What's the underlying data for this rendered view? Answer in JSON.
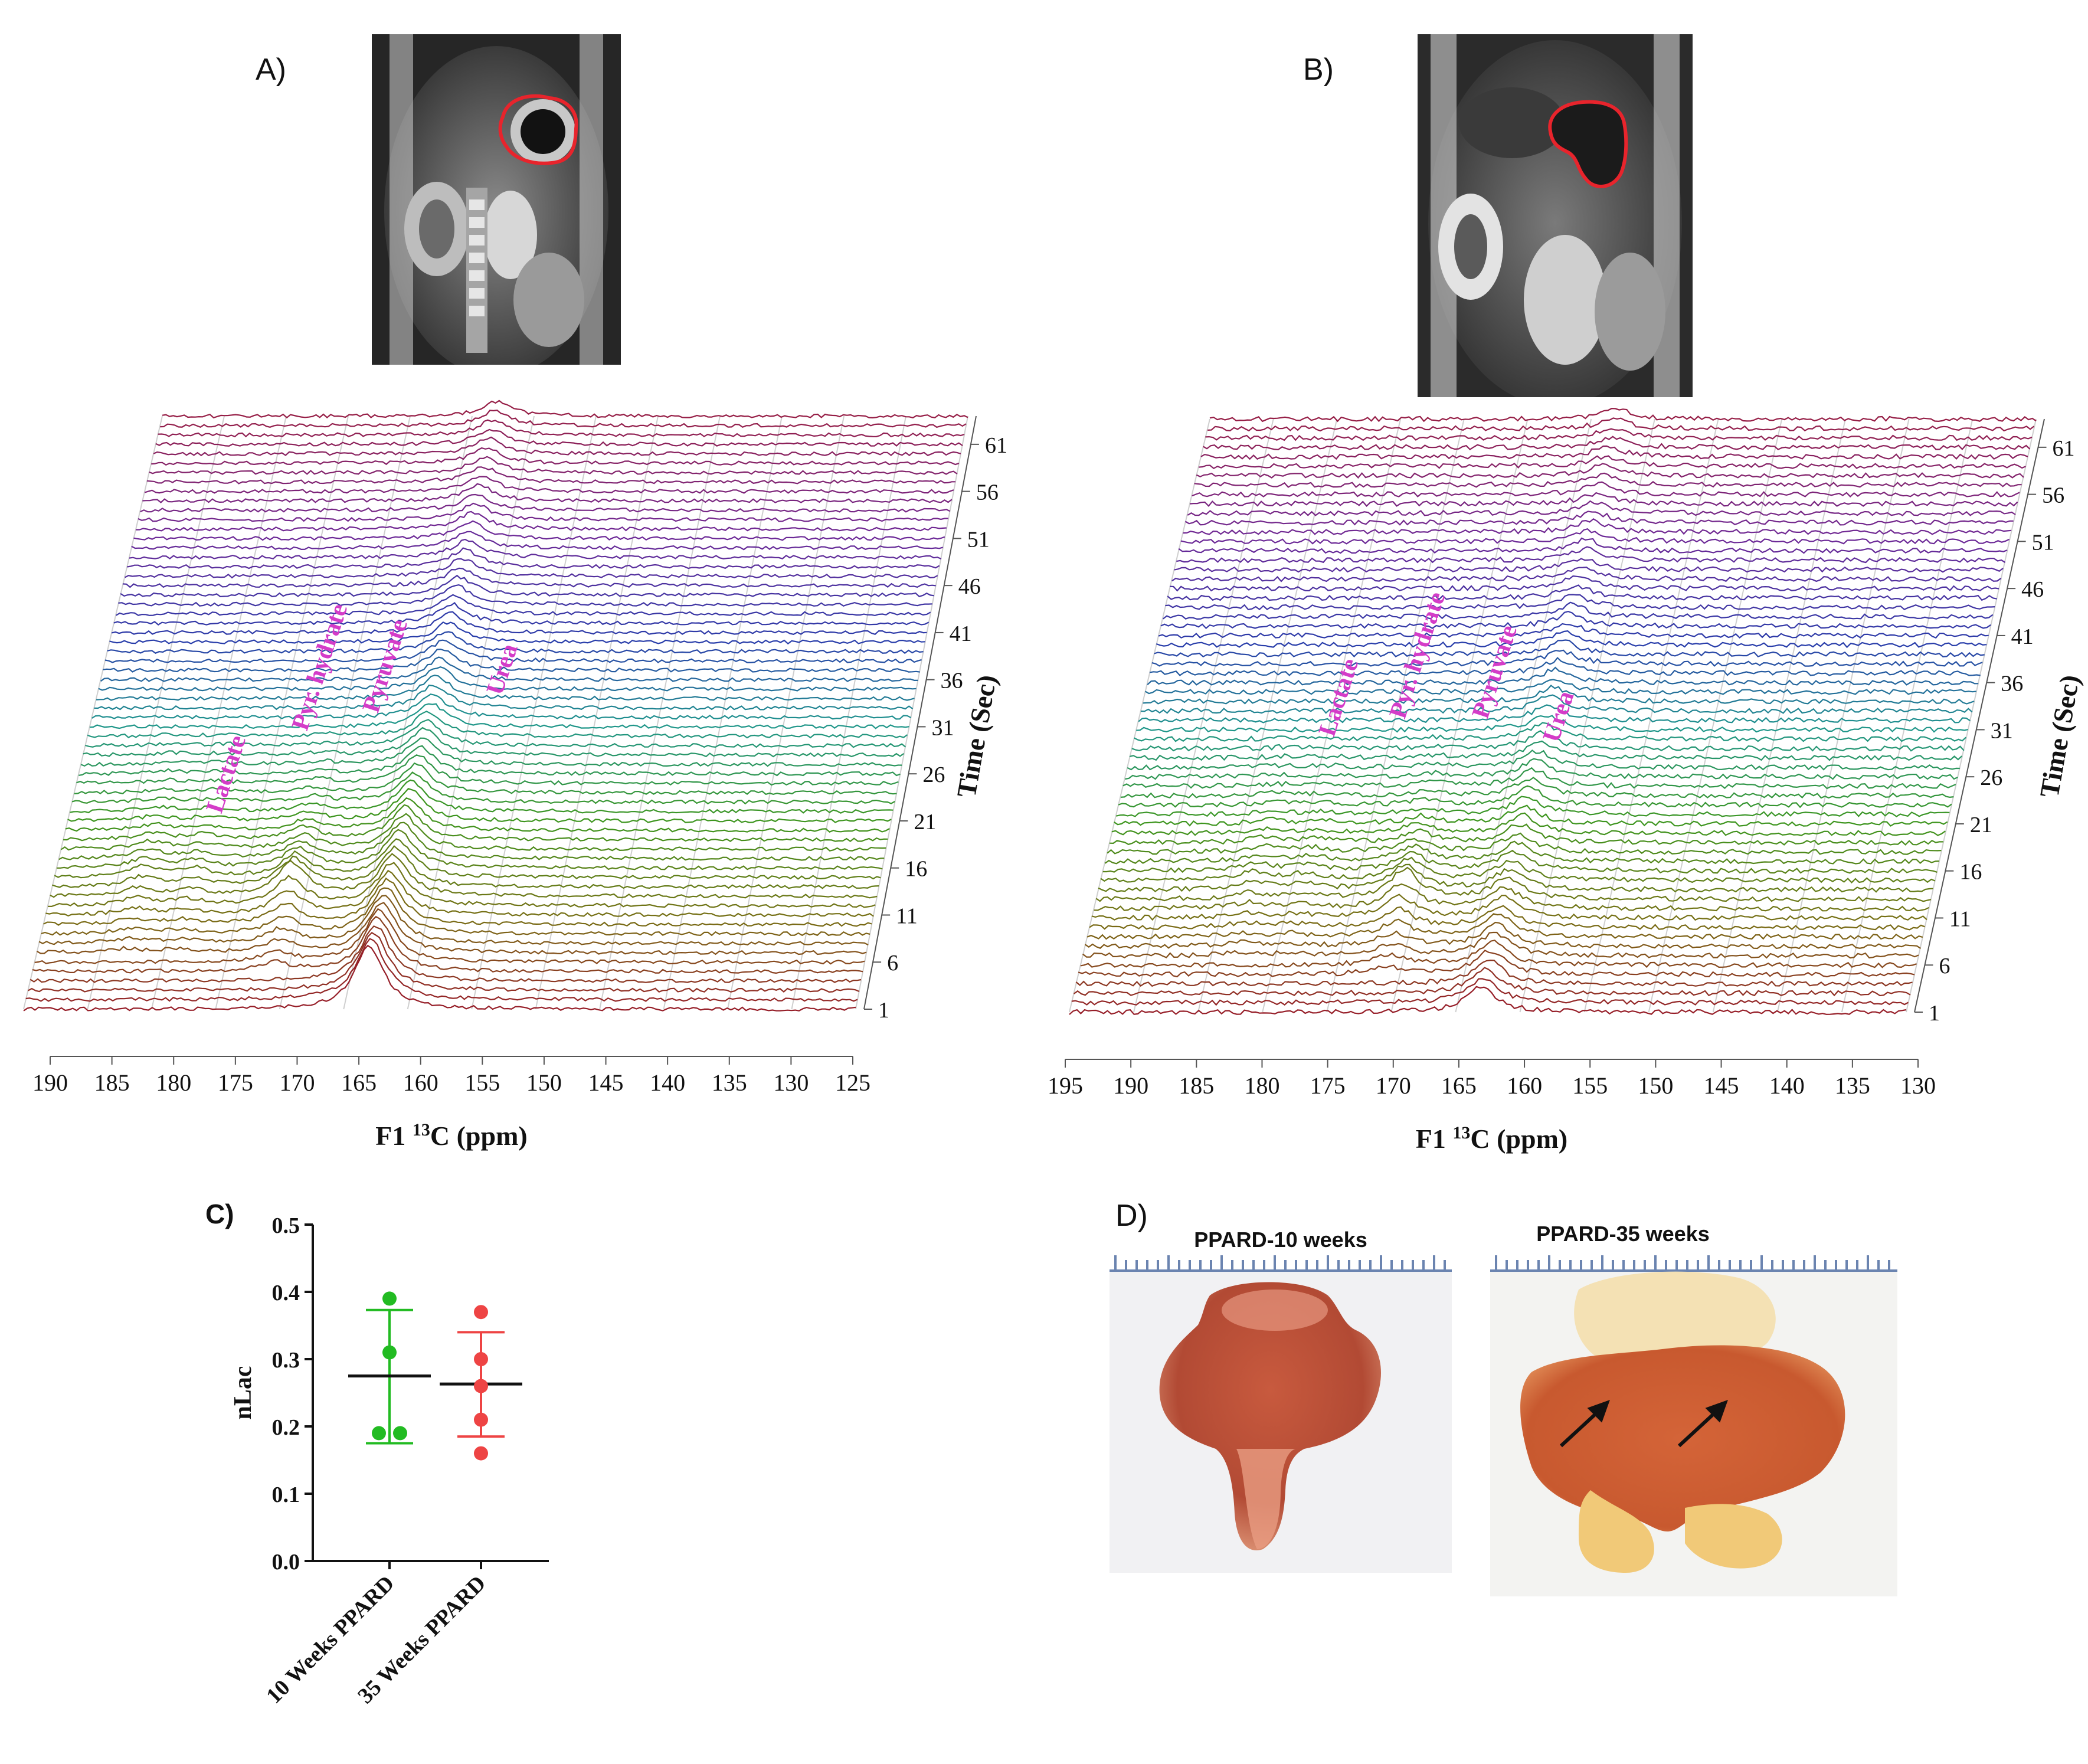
{
  "panels": {
    "a": {
      "label": "A)"
    },
    "b": {
      "label": "B)"
    },
    "c": {
      "label": "C)"
    },
    "d": {
      "label": "D)"
    }
  },
  "colors": {
    "roi_outline": "#e8242c",
    "peak_label": "#d43cc8",
    "group1": "#22bb22",
    "group2": "#ee4444"
  },
  "chart_data": [
    {
      "id": "spectrum_a",
      "type": "line",
      "style": "stacked-3d-spectra",
      "xlabel": "F1 ",
      "xlabel_sup": "13",
      "xlabel_rest": "C (ppm)",
      "ylabel": "Time (Sec)",
      "x_ticks": [
        190,
        185,
        180,
        175,
        170,
        165,
        160,
        155,
        150,
        145,
        140,
        135,
        130,
        125
      ],
      "xlim": [
        190,
        125
      ],
      "time_ticks": [
        1,
        6,
        11,
        16,
        21,
        26,
        31,
        36,
        41,
        46,
        51,
        56,
        61
      ],
      "n_traces": 64,
      "peaks": [
        {
          "name": "Lactate",
          "ppm": 183
        },
        {
          "name": "Pyr. hydrate",
          "ppm": 179
        },
        {
          "name": "Pyruvate",
          "ppm": 171
        },
        {
          "name": "Urea",
          "ppm": 163
        }
      ]
    },
    {
      "id": "spectrum_b",
      "type": "line",
      "style": "stacked-3d-spectra",
      "xlabel": "F1 ",
      "xlabel_sup": "13",
      "xlabel_rest": "C (ppm)",
      "ylabel": "Time (Sec)",
      "x_ticks": [
        195,
        190,
        185,
        180,
        175,
        170,
        165,
        160,
        155,
        150,
        145,
        140,
        135,
        130
      ],
      "xlim": [
        195,
        130
      ],
      "time_ticks": [
        1,
        6,
        11,
        16,
        21,
        26,
        31,
        36,
        41,
        46,
        51,
        56,
        61
      ],
      "n_traces": 64,
      "peaks": [
        {
          "name": "Lactate",
          "ppm": 183
        },
        {
          "name": "Pyr. hydrate",
          "ppm": 179
        },
        {
          "name": "Pyruvate",
          "ppm": 171
        },
        {
          "name": "Urea",
          "ppm": 163
        }
      ]
    },
    {
      "id": "scatter_c",
      "type": "scatter",
      "ylabel": "nLac",
      "ylim": [
        0.0,
        0.5
      ],
      "yticks": [
        "0.0",
        "0.1",
        "0.2",
        "0.3",
        "0.4",
        "0.5"
      ],
      "categories": [
        "10 Weeks PPARD",
        "35 Weeks PPARD"
      ],
      "series": [
        {
          "name": "10 Weeks PPARD",
          "values": [
            0.39,
            0.31,
            0.19,
            0.19
          ],
          "mean": 0.275,
          "sd_low": 0.175,
          "sd_high": 0.373
        },
        {
          "name": "35 Weeks PPARD",
          "values": [
            0.37,
            0.3,
            0.26,
            0.21,
            0.16
          ],
          "mean": 0.263,
          "sd_low": 0.185,
          "sd_high": 0.34
        }
      ]
    }
  ],
  "photos": {
    "left_caption": "PPARD-10 weeks",
    "right_caption": "PPARD-35 weeks"
  }
}
